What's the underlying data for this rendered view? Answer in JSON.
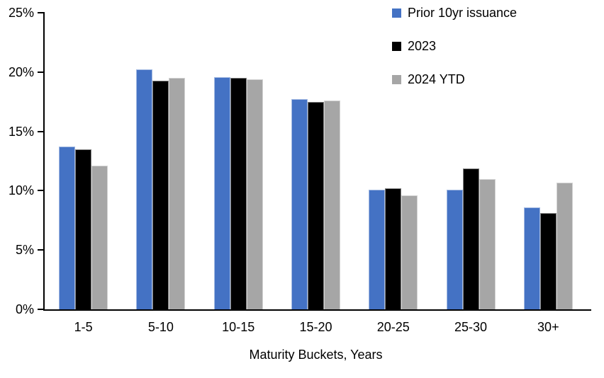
{
  "chart_data": {
    "type": "bar",
    "title": "",
    "xlabel": "Maturity Buckets, Years",
    "ylabel": "",
    "categories": [
      "1-5",
      "5-10",
      "10-15",
      "15-20",
      "20-25",
      "25-30",
      "30+"
    ],
    "series": [
      {
        "name": "Prior 10yr issuance",
        "color": "#4472C4",
        "values": [
          13.7,
          20.2,
          19.6,
          17.7,
          10.1,
          10.1,
          8.6
        ]
      },
      {
        "name": "2023",
        "color": "#000000",
        "values": [
          13.5,
          19.3,
          19.5,
          17.5,
          10.2,
          11.9,
          8.1
        ]
      },
      {
        "name": "2024 YTD",
        "color": "#A6A6A6",
        "values": [
          12.1,
          19.5,
          19.4,
          17.6,
          9.6,
          11.0,
          10.7
        ]
      }
    ],
    "ylim": [
      0,
      25
    ],
    "yticks": [
      {
        "value": 25,
        "label": "25%"
      },
      {
        "value": 20,
        "label": "20%"
      },
      {
        "value": 15,
        "label": "15%"
      },
      {
        "value": 10,
        "label": "10%"
      },
      {
        "value": 5,
        "label": "5%"
      },
      {
        "value": 0,
        "label": "0%"
      }
    ],
    "legend_position": "top-right",
    "grid": false,
    "axis_color": "#000000",
    "text_color": "#000000",
    "background": "#FFFFFF"
  }
}
